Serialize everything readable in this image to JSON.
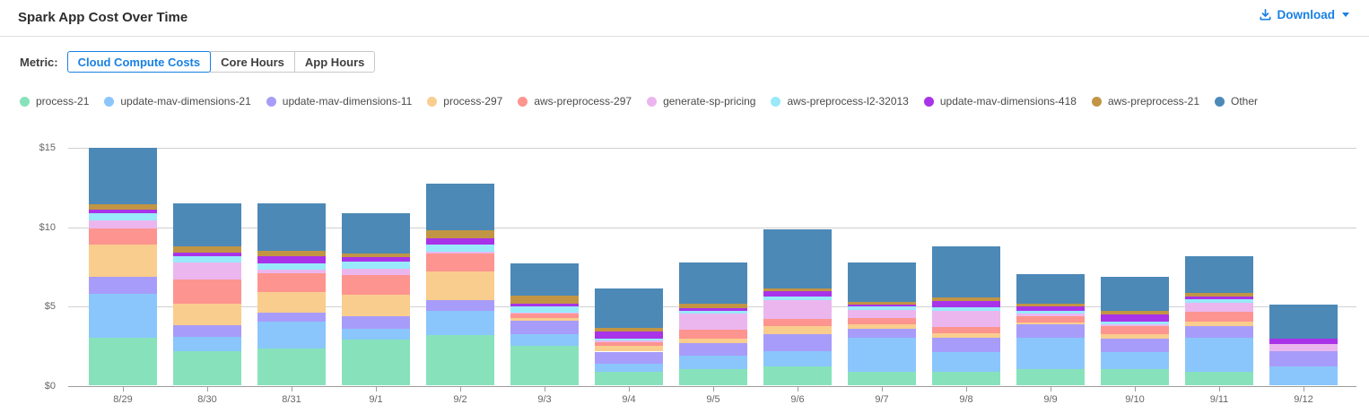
{
  "header": {
    "title": "Spark App Cost Over Time",
    "download_label": "Download"
  },
  "metric": {
    "label": "Metric:",
    "options": [
      {
        "label": "Cloud Compute Costs",
        "selected": true
      },
      {
        "label": "Core Hours",
        "selected": false
      },
      {
        "label": "App Hours",
        "selected": false
      }
    ]
  },
  "colors": {
    "accent_blue": "#1980e4",
    "gridline": "#d0d0d0",
    "axis_line": "#9c9c9c",
    "axis_text": "#666666"
  },
  "chart_data": {
    "type": "bar",
    "stacked": true,
    "title": "Spark App Cost Over Time",
    "xlabel": "",
    "ylabel": "",
    "ylim": [
      0,
      15
    ],
    "y_ticks": [
      {
        "value": 0,
        "label": "$0"
      },
      {
        "value": 5,
        "label": "$5"
      },
      {
        "value": 10,
        "label": "$10"
      },
      {
        "value": 15,
        "label": "$15"
      }
    ],
    "grid": true,
    "legend_position": "top",
    "categories": [
      "8/29",
      "8/30",
      "8/31",
      "9/1",
      "9/2",
      "9/3",
      "9/4",
      "9/5",
      "9/6",
      "9/7",
      "9/8",
      "9/9",
      "9/10",
      "9/11",
      "9/12"
    ],
    "series": [
      {
        "name": "process-21",
        "color": "#87e2bb",
        "values": [
          3.0,
          2.2,
          2.35,
          2.9,
          3.2,
          2.5,
          0.85,
          1.05,
          1.2,
          0.9,
          0.9,
          1.05,
          1.05,
          0.9,
          0
        ]
      },
      {
        "name": "update-mav-dimensions-21",
        "color": "#8ac6fb",
        "values": [
          2.8,
          0.9,
          1.7,
          0.7,
          1.5,
          0.75,
          0.55,
          0.85,
          1.0,
          2.1,
          1.2,
          2.0,
          1.05,
          2.15,
          1.2
        ]
      },
      {
        "name": "update-mav-dimensions-11",
        "color": "#a89cfa",
        "values": [
          1.05,
          0.7,
          0.55,
          0.8,
          0.7,
          0.85,
          0.75,
          0.8,
          1.05,
          0.6,
          0.9,
          0.8,
          0.85,
          0.7,
          1.0
        ]
      },
      {
        "name": "process-297",
        "color": "#f9cd8d",
        "values": [
          2.05,
          1.35,
          1.3,
          1.35,
          1.8,
          0.2,
          0.35,
          0.25,
          0.5,
          0.25,
          0.3,
          0.15,
          0.3,
          0.3,
          0
        ]
      },
      {
        "name": "aws-preprocess-297",
        "color": "#fd948f",
        "values": [
          1.05,
          1.55,
          1.2,
          1.25,
          1.15,
          0.25,
          0.25,
          0.6,
          0.45,
          0.4,
          0.4,
          0.4,
          0.5,
          0.6,
          0
        ]
      },
      {
        "name": "generate-sp-pricing",
        "color": "#ebb6ee",
        "values": [
          0.5,
          1.1,
          0.25,
          0.4,
          0.1,
          0.05,
          0.1,
          1.0,
          1.2,
          0.55,
          1.05,
          0.15,
          0.1,
          0.6,
          0.45
        ]
      },
      {
        "name": "aws-preprocess-l2-32013",
        "color": "#99e9fa",
        "values": [
          0.45,
          0.4,
          0.4,
          0.45,
          0.45,
          0.4,
          0.1,
          0.2,
          0.25,
          0.2,
          0.2,
          0.2,
          0.2,
          0.2,
          0
        ]
      },
      {
        "name": "update-mav-dimensions-418",
        "color": "#a833e8",
        "values": [
          0.2,
          0.2,
          0.45,
          0.25,
          0.4,
          0.2,
          0.5,
          0.15,
          0.3,
          0.1,
          0.4,
          0.25,
          0.45,
          0.2,
          0.3
        ]
      },
      {
        "name": "aws-preprocess-21",
        "color": "#c29544",
        "values": [
          0.35,
          0.4,
          0.3,
          0.25,
          0.5,
          0.5,
          0.2,
          0.25,
          0.2,
          0.2,
          0.2,
          0.2,
          0.25,
          0.2,
          0
        ]
      },
      {
        "name": "Other",
        "color": "#4c89b7",
        "values": [
          3.55,
          2.7,
          3.0,
          2.55,
          2.95,
          2.0,
          2.5,
          2.65,
          3.75,
          2.5,
          3.25,
          1.85,
          2.15,
          2.3,
          2.15
        ]
      }
    ]
  }
}
